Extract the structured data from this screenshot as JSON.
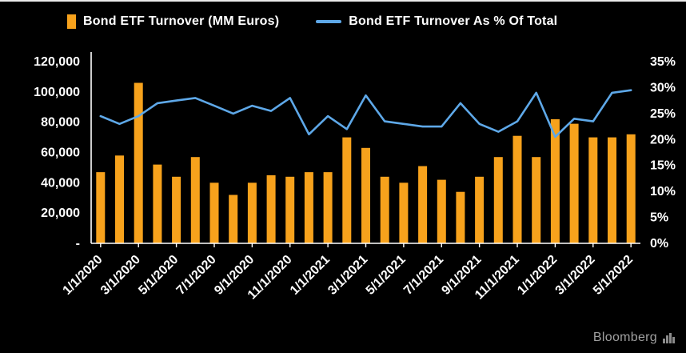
{
  "legend": {
    "items": [
      {
        "label": "Bond ETF Turnover (MM Euros)",
        "color": "#F7A21C",
        "marker": "bar"
      },
      {
        "label": "Bond ETF Turnover As % Of Total",
        "color": "#5EA8E8",
        "marker": "line"
      }
    ]
  },
  "branding": {
    "label": "Bloomberg"
  },
  "chart_data": {
    "type": "combo",
    "title": "",
    "background_color": "#000000",
    "grid": false,
    "legend_position": "top",
    "categories": [
      "1/1/2020",
      "2/1/2020",
      "3/1/2020",
      "4/1/2020",
      "5/1/2020",
      "6/1/2020",
      "7/1/2020",
      "8/1/2020",
      "9/1/2020",
      "10/1/2020",
      "11/1/2020",
      "12/1/2020",
      "1/1/2021",
      "2/1/2021",
      "3/1/2021",
      "4/1/2021",
      "5/1/2021",
      "6/1/2021",
      "7/1/2021",
      "8/1/2021",
      "9/1/2021",
      "10/1/2021",
      "11/1/2021",
      "12/1/2021",
      "1/1/2022",
      "2/1/2022",
      "3/1/2022",
      "4/1/2022",
      "5/1/2022"
    ],
    "x_tick_labels": [
      "1/1/2020",
      "3/1/2020",
      "5/1/2020",
      "7/1/2020",
      "9/1/2020",
      "11/1/2020",
      "1/1/2021",
      "3/1/2021",
      "5/1/2021",
      "7/1/2021",
      "9/1/2021",
      "11/1/2021",
      "1/1/2022",
      "3/1/2022",
      "5/1/2022"
    ],
    "series": [
      {
        "name": "Bond ETF Turnover (MM Euros)",
        "type": "bar",
        "axis": "left",
        "color": "#F7A21C",
        "values": [
          47000,
          58000,
          106000,
          52000,
          44000,
          57000,
          40000,
          32000,
          40000,
          45000,
          44000,
          47000,
          47000,
          70000,
          63000,
          44000,
          40000,
          51000,
          42000,
          34000,
          44000,
          57000,
          71000,
          57000,
          82000,
          79000,
          70000,
          70000,
          72000
        ]
      },
      {
        "name": "Bond ETF Turnover As % Of Total",
        "type": "line",
        "axis": "right",
        "color": "#5EA8E8",
        "values": [
          24.5,
          23,
          24.5,
          27,
          27.5,
          28,
          26.5,
          25,
          26.5,
          25.5,
          28,
          21,
          24.5,
          22,
          28.5,
          23.5,
          23,
          22.5,
          22.5,
          27,
          23,
          21.5,
          23.5,
          29,
          20.5,
          24,
          23.5,
          29,
          29.5
        ]
      }
    ],
    "left_axis": {
      "min": 0,
      "max": 120000,
      "ticks": [
        120000,
        100000,
        80000,
        60000,
        40000,
        20000,
        0
      ],
      "tick_labels": [
        "120,000",
        "100,000",
        "80,000",
        "60,000",
        "40,000",
        "20,000",
        "-"
      ]
    },
    "right_axis": {
      "min": 0,
      "max": 35,
      "ticks": [
        35,
        30,
        25,
        20,
        15,
        10,
        5,
        0
      ],
      "tick_labels": [
        "35%",
        "30%",
        "25%",
        "20%",
        "15%",
        "10%",
        "5%",
        "0%"
      ]
    }
  }
}
